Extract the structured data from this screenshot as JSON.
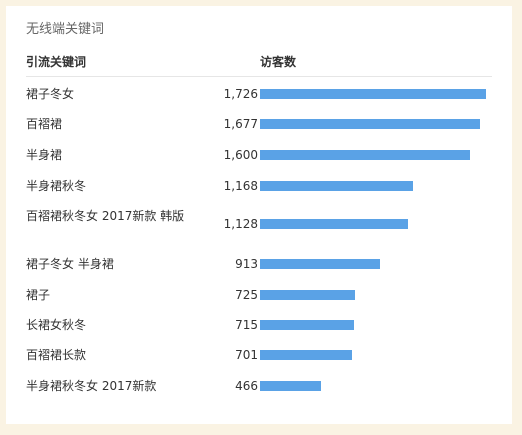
{
  "panel_title": "无线端关键词",
  "headers": {
    "keyword": "引流关键词",
    "visitors": "访客数"
  },
  "colors": {
    "bar": "#5aa2e6",
    "background": "#faf3e3"
  },
  "rows": [
    {
      "keyword": "裙子冬女",
      "visitors": "1,726",
      "value": 1726
    },
    {
      "keyword": "百褶裙",
      "visitors": "1,677",
      "value": 1677
    },
    {
      "keyword": "半身裙",
      "visitors": "1,600",
      "value": 1600
    },
    {
      "keyword": "半身裙秋冬",
      "visitors": "1,168",
      "value": 1168
    },
    {
      "keyword": "百褶裙秋冬女 2017新款 韩版",
      "visitors": "1,128",
      "value": 1128
    },
    {
      "keyword": "裙子冬女 半身裙",
      "visitors": "913",
      "value": 913
    },
    {
      "keyword": "裙子",
      "visitors": "725",
      "value": 725
    },
    {
      "keyword": "长裙女秋冬",
      "visitors": "715",
      "value": 715
    },
    {
      "keyword": "百褶裙长款",
      "visitors": "701",
      "value": 701
    },
    {
      "keyword": "半身裙秋冬女 2017新款",
      "visitors": "466",
      "value": 466
    }
  ]
}
